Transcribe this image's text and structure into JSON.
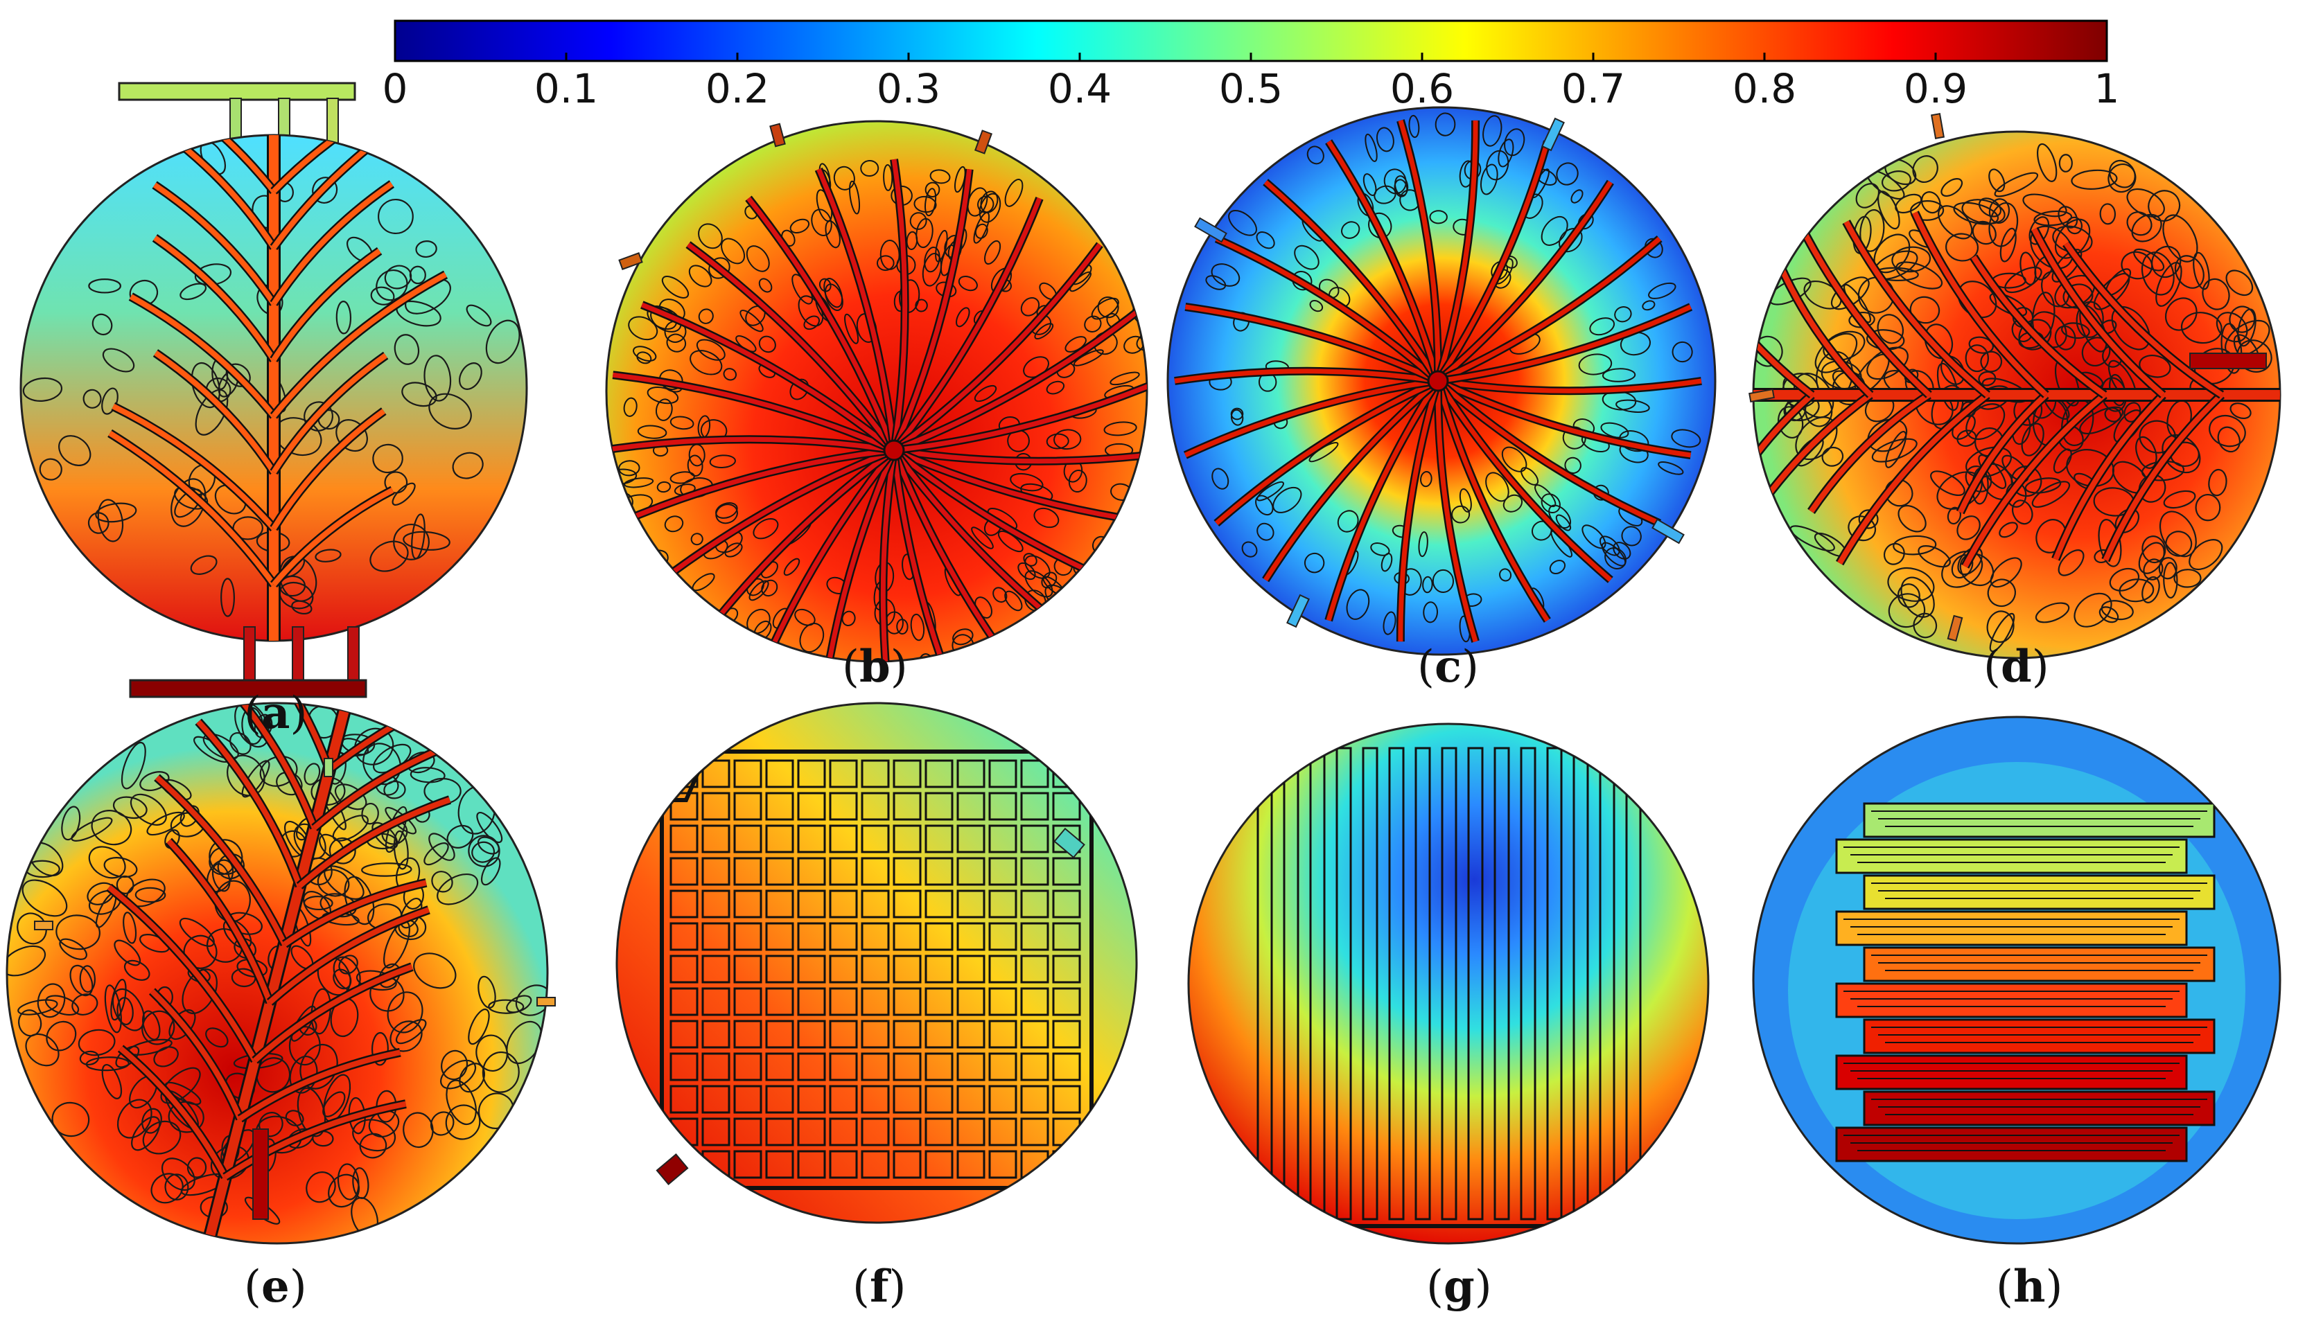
{
  "colorbar": {
    "ticks": [
      "0",
      "0.1",
      "0.2",
      "0.3",
      "0.4",
      "0.5",
      "0.6",
      "0.7",
      "0.8",
      "0.9",
      "1"
    ],
    "colormap": "jet",
    "stops": [
      "#00008f",
      "#0000ff",
      "#007fff",
      "#00ffff",
      "#7fff7f",
      "#ffff00",
      "#ff7f00",
      "#ff0000",
      "#7f0000"
    ]
  },
  "panels": [
    {
      "id": "a",
      "label": "a",
      "pattern": "leaf-vein with manifolds",
      "fill_level": 0.72
    },
    {
      "id": "b",
      "label": "b",
      "pattern": "radial vein",
      "fill_level": 0.85
    },
    {
      "id": "c",
      "label": "c",
      "pattern": "radial spider",
      "fill_level": 0.35
    },
    {
      "id": "d",
      "label": "d",
      "pattern": "leaf-vein horizontal",
      "fill_level": 0.8
    },
    {
      "id": "e",
      "label": "e",
      "pattern": "leaf-vein diagonal",
      "fill_level": 0.75
    },
    {
      "id": "f",
      "label": "f",
      "pattern": "grid",
      "fill_level": 0.7
    },
    {
      "id": "g",
      "label": "g",
      "pattern": "parallel",
      "fill_level": 0.55
    },
    {
      "id": "h",
      "label": "h",
      "pattern": "serpentine",
      "fill_level": 0.5
    }
  ]
}
